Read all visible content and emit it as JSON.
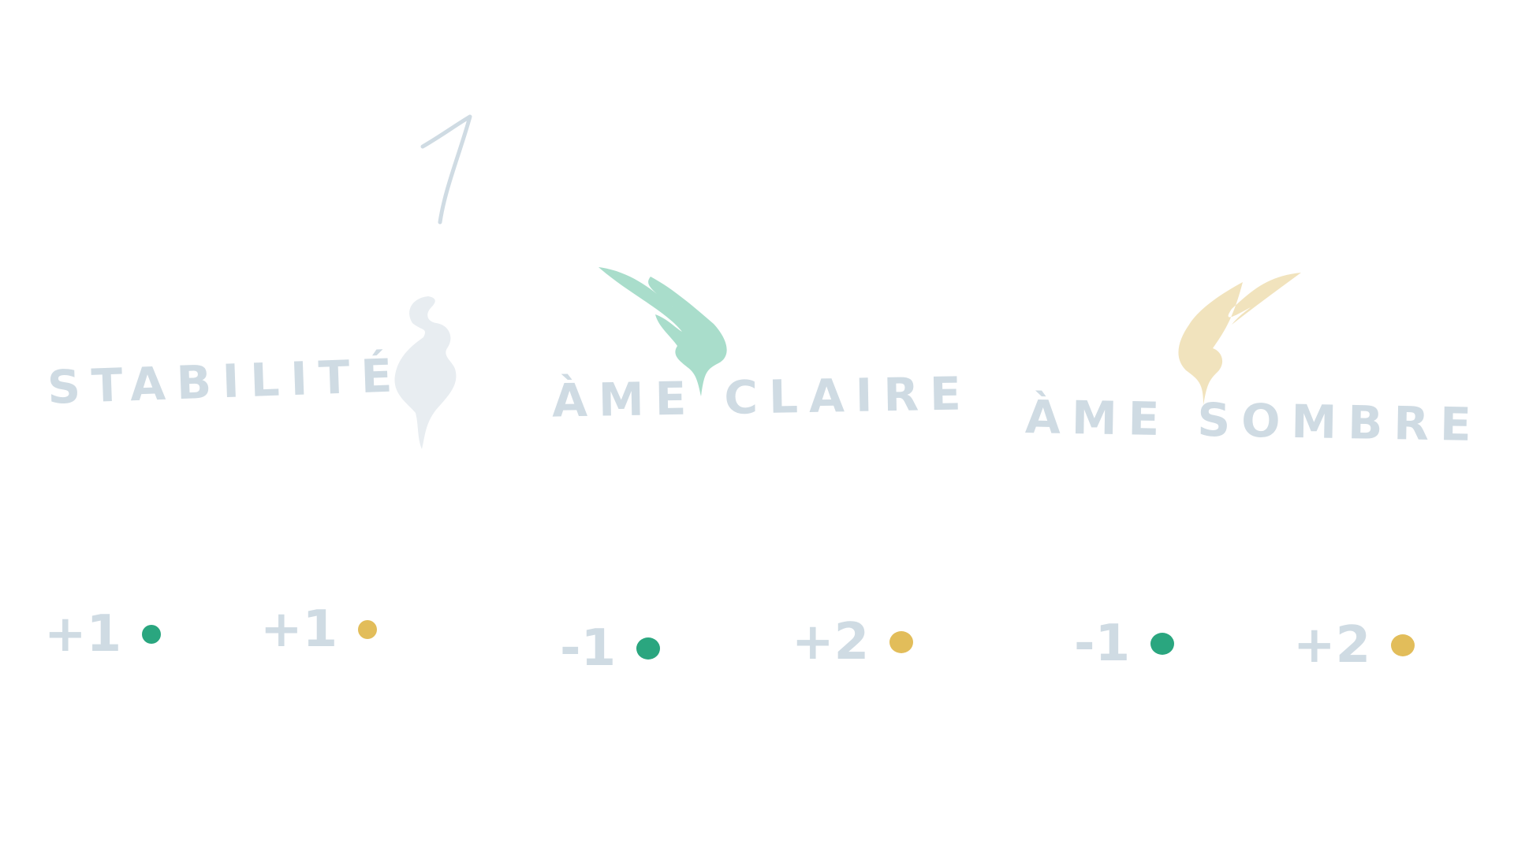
{
  "colors": {
    "ink": "#cfdbe3",
    "stability_shape": "#e8edf1",
    "light_shape": "#a9ddcb",
    "dark_shape": "#f1e3bd",
    "light_dot": "#2aa67f",
    "dark_dot": "#e2bd5a"
  },
  "page_number": "1",
  "categories": [
    {
      "label": "STABILITÉ",
      "icon": "vase-shape",
      "effects": [
        {
          "value": "+1",
          "dot": "light"
        },
        {
          "value": "+1",
          "dot": "dark"
        }
      ]
    },
    {
      "label": "ÀME CLAIRE",
      "icon": "flame-shape",
      "effects": [
        {
          "value": "-1",
          "dot": "light"
        },
        {
          "value": "+2",
          "dot": "dark"
        }
      ]
    },
    {
      "label": "ÀME SOMBRE",
      "icon": "flame-shape",
      "effects": [
        {
          "value": "-1",
          "dot": "light"
        },
        {
          "value": "+2",
          "dot": "dark"
        }
      ]
    }
  ]
}
